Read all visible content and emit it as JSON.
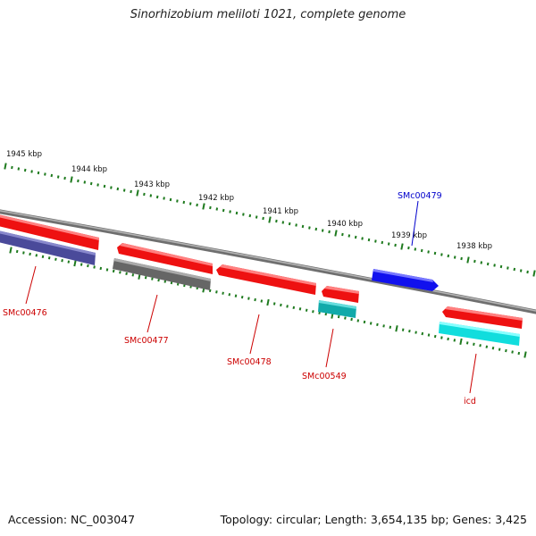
{
  "title": "Sinorhizobium meliloti 1021, complete genome",
  "footer": {
    "accession": "Accession: NC_003047",
    "summary": "Topology: circular; Length: 3,654,135 bp; Genes: 3,425"
  },
  "colors": {
    "backbone": "#8a8a8a",
    "tick": "#1e7a1e",
    "label_red": "#cc0000",
    "label_blue": "#0000cc"
  },
  "ticks": [
    "1945 kbp",
    "1944 kbp",
    "1943 kbp",
    "1942 kbp",
    "1941 kbp",
    "1940 kbp",
    "1939 kbp",
    "1938 kbp"
  ],
  "features": [
    {
      "name": "SMc00476",
      "color": "#ee1111",
      "strand": "outer"
    },
    {
      "name": "",
      "color": "#4a4a9a",
      "strand": "inner"
    },
    {
      "name": "SMc00477",
      "color": "#ee1111",
      "strand": "outer"
    },
    {
      "name": "",
      "color": "#666666",
      "strand": "inner"
    },
    {
      "name": "SMc00478",
      "color": "#ee1111",
      "strand": "outer"
    },
    {
      "name": "SMc00549",
      "color": "#ee1111",
      "strand": "outer"
    },
    {
      "name": "",
      "color": "#11aaaa",
      "strand": "inner"
    },
    {
      "name": "SMc00479",
      "color": "#1111ee",
      "strand": "above"
    },
    {
      "name": "icd",
      "color": "#ee1111",
      "strand": "outer"
    },
    {
      "name": "",
      "color": "#11dddd",
      "strand": "inner"
    }
  ]
}
